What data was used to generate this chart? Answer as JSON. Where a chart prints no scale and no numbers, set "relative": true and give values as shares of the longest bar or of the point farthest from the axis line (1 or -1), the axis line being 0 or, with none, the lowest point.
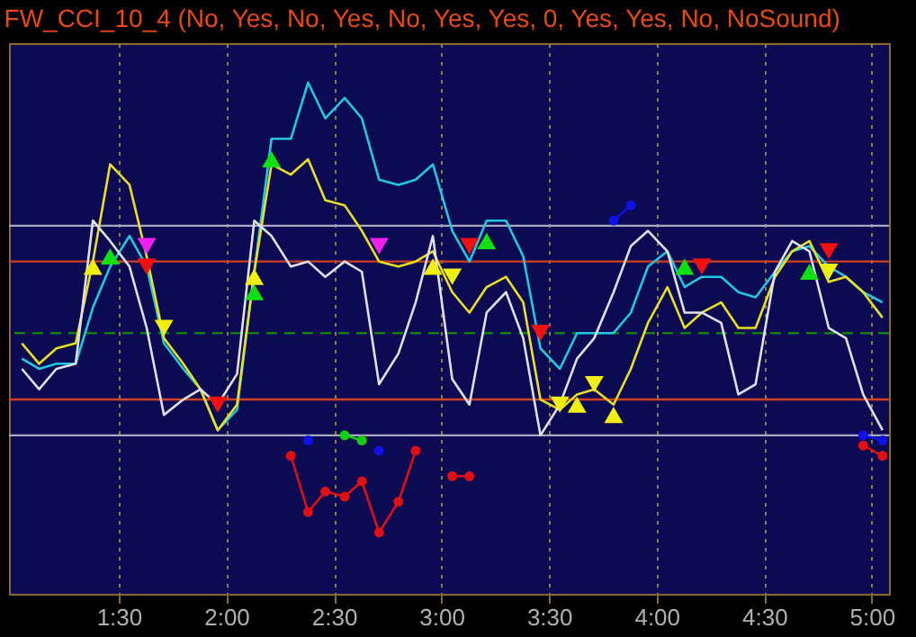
{
  "chart_data": {
    "type": "line",
    "title": "FW_CCI_10_4 (No, Yes, No, Yes, No, Yes, Yes, 0, Yes, Yes, No, NoSound)",
    "relative": true,
    "grid": "x",
    "marker": "none",
    "x": [
      1.05,
      1.13,
      1.21,
      1.3,
      1.38,
      1.46,
      1.55,
      1.63,
      1.71,
      1.8,
      1.88,
      1.96,
      2.05,
      2.13,
      2.21,
      2.3,
      2.38,
      2.46,
      2.55,
      2.63,
      2.71,
      2.8,
      2.88,
      2.96,
      3.05,
      3.13,
      3.21,
      3.3,
      3.38,
      3.46,
      3.55,
      3.63,
      3.71,
      3.8,
      3.88,
      3.96,
      4.05,
      4.13,
      4.21,
      4.3,
      4.38,
      4.46,
      4.55,
      4.63,
      4.71,
      4.8,
      4.88,
      4.96,
      5.05
    ],
    "xlim": [
      0.99,
      5.08
    ],
    "xticks": [
      {
        "value": 1.5,
        "label": "1:30"
      },
      {
        "value": 2.0,
        "label": "2:00"
      },
      {
        "value": 2.5,
        "label": "2:30"
      },
      {
        "value": 3.0,
        "label": "3:00"
      },
      {
        "value": 3.5,
        "label": "3:30"
      },
      {
        "value": 4.0,
        "label": "4:00"
      },
      {
        "value": 4.5,
        "label": "4:30"
      },
      {
        "value": 5.0,
        "label": "5:00"
      }
    ],
    "series": [
      {
        "color": "#20c8e0",
        "values": [
          0.46,
          0.44,
          0.45,
          0.45,
          0.56,
          0.64,
          0.7,
          0.64,
          0.49,
          0.44,
          0.4,
          0.32,
          0.36,
          0.63,
          0.89,
          0.89,
          1,
          0.93,
          0.97,
          0.93,
          0.81,
          0.8,
          0.81,
          0.84,
          0.71,
          0.65,
          0.73,
          0.73,
          0.66,
          0.48,
          0.44,
          0.51,
          0.51,
          0.51,
          0.55,
          0.64,
          0.67,
          0.6,
          0.62,
          0.62,
          0.59,
          0.58,
          0.63,
          0.67,
          0.68,
          0.64,
          0.62,
          0.59,
          0.57
        ]
      },
      {
        "color": "#e8e020",
        "values": [
          0.49,
          0.45,
          0.48,
          0.49,
          0.65,
          0.84,
          0.8,
          0.66,
          0.5,
          0.45,
          0.4,
          0.32,
          0.37,
          0.63,
          0.84,
          0.82,
          0.85,
          0.77,
          0.76,
          0.71,
          0.65,
          0.64,
          0.65,
          0.67,
          0.59,
          0.55,
          0.6,
          0.62,
          0.57,
          0.38,
          0.36,
          0.39,
          0.4,
          0.37,
          0.44,
          0.53,
          0.6,
          0.52,
          0.55,
          0.57,
          0.52,
          0.52,
          0.62,
          0.67,
          0.69,
          0.61,
          0.62,
          0.59,
          0.54
        ]
      },
      {
        "color": "#e0e0f0",
        "values": [
          0.44,
          0.4,
          0.44,
          0.45,
          0.73,
          0.69,
          0.64,
          0.52,
          0.35,
          0.38,
          0.4,
          0.37,
          0.43,
          0.73,
          0.7,
          0.64,
          0.65,
          0.62,
          0.65,
          0.63,
          0.41,
          0.47,
          0.57,
          0.7,
          0.42,
          0.37,
          0.55,
          0.59,
          0.5,
          0.31,
          0.37,
          0.46,
          0.5,
          0.59,
          0.68,
          0.71,
          0.67,
          0.55,
          0.55,
          0.53,
          0.39,
          0.41,
          0.63,
          0.69,
          0.67,
          0.52,
          0.5,
          0.39,
          0.32
        ]
      },
      {
        "marker": "circle",
        "color": "#e01010",
        "x": [
          2.3,
          2.38,
          2.46,
          2.55,
          2.63,
          2.71,
          2.8,
          2.88,
          2.96,
          3.05,
          3.13,
          3.21,
          4.96,
          5.05
        ],
        "values": [
          0.27,
          0.16,
          0.2,
          0.19,
          0.22,
          0.12,
          0.18,
          0.28,
          null,
          0.23,
          0.23,
          null,
          0.29,
          0.27
        ]
      },
      {
        "marker": "circle",
        "color": "#1010e8",
        "x": [
          2.38,
          2.46,
          2.71,
          2.8,
          3.8,
          3.88,
          3.96,
          4.96,
          5.05
        ],
        "values": [
          0.3,
          null,
          0.28,
          null,
          0.73,
          0.76,
          null,
          0.31,
          0.3
        ]
      },
      {
        "marker": "circle",
        "color": "#10d010",
        "x": [
          2.55,
          2.63
        ],
        "values": [
          0.31,
          0.3
        ]
      },
      {
        "type": "scatter",
        "marker": "triangle",
        "color": "#f0f010",
        "x": [
          1.38,
          2.13,
          2.96,
          3.63,
          3.8
        ],
        "values": [
          0.64,
          0.62,
          0.64,
          0.37,
          0.35
        ]
      },
      {
        "type": "scatter",
        "marker": "triangle-down",
        "color": "#f0f010",
        "x": [
          1.71,
          3.05,
          3.55,
          3.71,
          4.8
        ],
        "values": [
          0.52,
          0.62,
          0.37,
          0.41,
          0.63
        ]
      },
      {
        "type": "scatter",
        "marker": "triangle",
        "color": "#10e010",
        "x": [
          1.46,
          2.13,
          2.21,
          3.21,
          4.13,
          4.71
        ],
        "values": [
          0.66,
          0.59,
          0.85,
          0.69,
          0.64,
          0.63
        ]
      },
      {
        "type": "scatter",
        "marker": "triangle-down",
        "color": "#f01010",
        "x": [
          1.63,
          1.96,
          3.13,
          3.46,
          4.21,
          4.8
        ],
        "values": [
          0.64,
          0.37,
          0.68,
          0.51,
          0.64,
          0.67
        ]
      },
      {
        "type": "scatter",
        "marker": "triangle-down",
        "color": "#f020f0",
        "x": [
          1.63,
          2.71
        ],
        "values": [
          0.68,
          0.68
        ]
      }
    ],
    "ref_lines": [
      {
        "axis": "y",
        "value": 0.72,
        "color": "#a8a8c0",
        "line_style": "solid"
      },
      {
        "axis": "y",
        "value": 0.65,
        "color": "#d04020",
        "line_style": "solid"
      },
      {
        "axis": "y",
        "value": 0.51,
        "color": "#108010",
        "line_style": "dashed"
      },
      {
        "axis": "y",
        "value": 0.38,
        "color": "#d04020",
        "line_style": "solid"
      },
      {
        "axis": "y",
        "value": 0.31,
        "color": "#a8a8c0",
        "line_style": "solid"
      }
    ]
  }
}
